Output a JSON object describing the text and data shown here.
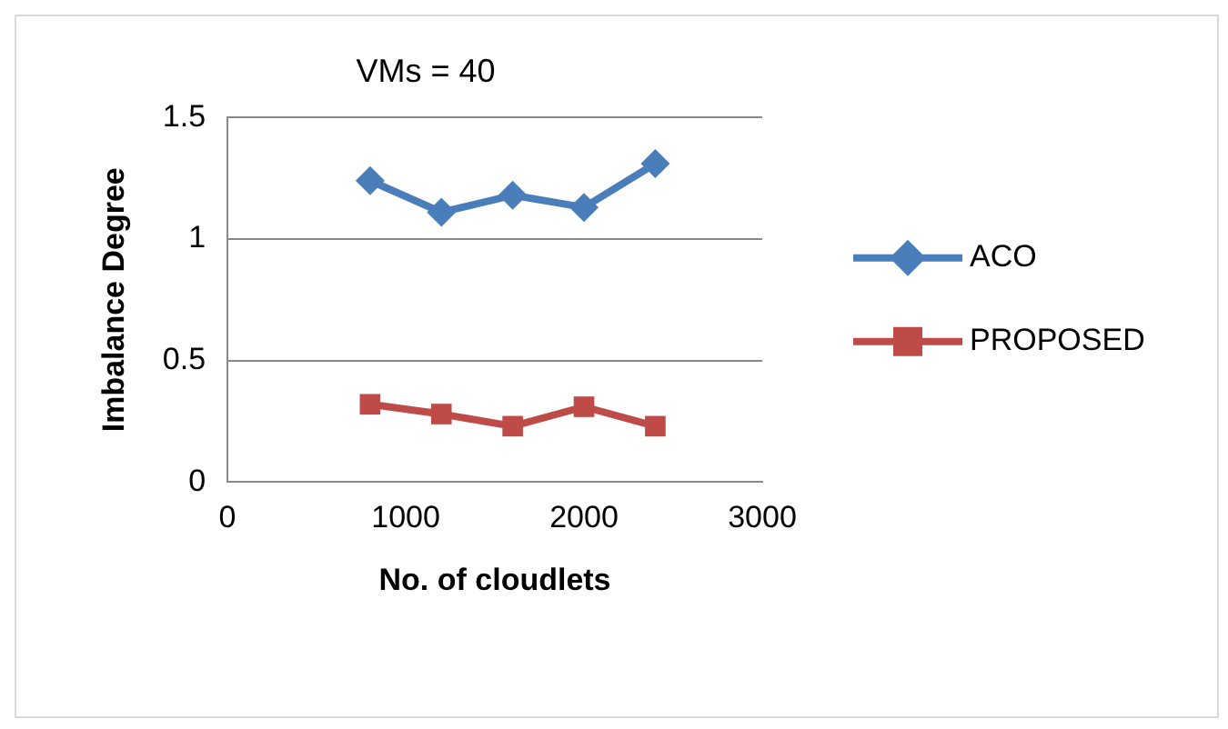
{
  "chart_data": {
    "type": "line",
    "title": "VMs = 40",
    "xlabel": "No. of cloudlets",
    "ylabel": "Imbalance Degree",
    "x": [
      800,
      1200,
      1600,
      2000,
      2400
    ],
    "series": [
      {
        "name": "ACO",
        "color": "#4a7ebb",
        "values": [
          1.24,
          1.11,
          1.18,
          1.13,
          1.31
        ],
        "marker": "diamond"
      },
      {
        "name": "PROPOSED",
        "color": "#be4b48",
        "values": [
          0.32,
          0.28,
          0.23,
          0.31,
          0.23
        ],
        "marker": "square"
      }
    ],
    "xlim": [
      0,
      3000
    ],
    "xticks": [
      0,
      1000,
      2000,
      3000
    ],
    "ylim": [
      0,
      1.5
    ],
    "yticks": [
      0,
      0.5,
      1,
      1.5
    ],
    "grid": "y",
    "legend": "right"
  }
}
